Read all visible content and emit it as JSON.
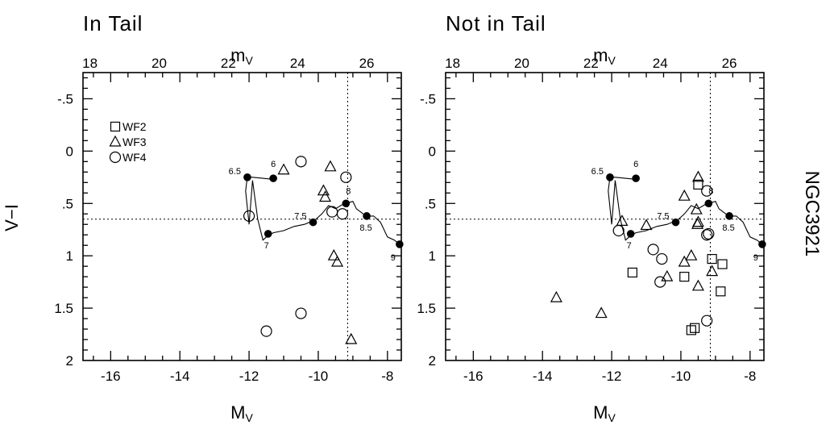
{
  "figure": {
    "side_label": "NGC3921"
  },
  "chart_data": [
    {
      "type": "scatter",
      "title": "In Tail",
      "xlabel": "M",
      "xlabel_sub": "V",
      "ylabel": "V−I",
      "top_xlabel": "m",
      "top_xlabel_sub": "V",
      "xlim": [
        -16.8,
        -7.6
      ],
      "ylim": [
        2,
        -0.75
      ],
      "y_inverted": true,
      "x_ticks": [
        -16,
        -14,
        -12,
        -10,
        -8
      ],
      "x_tick_labels": [
        "-16",
        "-14",
        "-12",
        "-10",
        "-8"
      ],
      "top_ticks": [
        18,
        20,
        22,
        24,
        26
      ],
      "top_tick_labels": [
        "18",
        "20",
        "22",
        "24",
        "26"
      ],
      "top_offset": 34.6,
      "y_ticks": [
        -0.5,
        0,
        0.5,
        1,
        1.5,
        2
      ],
      "y_tick_labels": [
        "-.5",
        "0",
        ".5",
        "1",
        "1.5",
        "2"
      ],
      "legend": {
        "placement": "top-left",
        "entries": [
          {
            "marker": "square",
            "label": "WF2"
          },
          {
            "marker": "triangle",
            "label": "WF3"
          },
          {
            "marker": "circle",
            "label": "WF4"
          }
        ]
      },
      "reference_lines": {
        "v": -9.15,
        "h": 0.65
      },
      "track": [
        [
          -11.3,
          0.27
        ],
        [
          -11.6,
          0.26
        ],
        [
          -11.9,
          0.25
        ],
        [
          -12.05,
          0.25
        ],
        [
          -12.1,
          0.38
        ],
        [
          -12.0,
          0.7
        ],
        [
          -11.9,
          0.28
        ],
        [
          -11.75,
          0.65
        ],
        [
          -11.6,
          0.85
        ],
        [
          -11.5,
          0.82
        ],
        [
          -11.3,
          0.78
        ],
        [
          -11.0,
          0.76
        ],
        [
          -10.7,
          0.72
        ],
        [
          -10.4,
          0.7
        ],
        [
          -10.25,
          0.68
        ],
        [
          -10.1,
          0.66
        ],
        [
          -9.9,
          0.6
        ],
        [
          -9.7,
          0.52
        ],
        [
          -9.5,
          0.55
        ],
        [
          -9.3,
          0.51
        ],
        [
          -9.2,
          0.5
        ],
        [
          -9.0,
          0.48
        ],
        [
          -8.9,
          0.55
        ],
        [
          -8.7,
          0.6
        ],
        [
          -8.6,
          0.62
        ],
        [
          -8.4,
          0.62
        ],
        [
          -8.2,
          0.68
        ],
        [
          -8.0,
          0.82
        ],
        [
          -7.8,
          0.85
        ],
        [
          -7.65,
          0.89
        ]
      ],
      "track_points": [
        {
          "x": -11.3,
          "y": 0.26,
          "label": "6"
        },
        {
          "x": -12.05,
          "y": 0.25,
          "label": "6.5"
        },
        {
          "x": -11.45,
          "y": 0.79,
          "label": "7"
        },
        {
          "x": -10.15,
          "y": 0.68,
          "label": "7.5"
        },
        {
          "x": -9.2,
          "y": 0.5,
          "label": "8"
        },
        {
          "x": -8.6,
          "y": 0.62,
          "label": "8.5"
        },
        {
          "x": -7.65,
          "y": 0.89,
          "label": "9"
        }
      ],
      "series": [
        {
          "name": "WF2",
          "marker": "square",
          "points": []
        },
        {
          "name": "WF3",
          "marker": "triangle",
          "points": [
            [
              -11.0,
              0.18
            ],
            [
              -9.65,
              0.15
            ],
            [
              -9.85,
              0.38
            ],
            [
              -9.8,
              0.44
            ],
            [
              -9.55,
              1.0
            ],
            [
              -9.45,
              1.06
            ],
            [
              -9.05,
              1.8
            ]
          ]
        },
        {
          "name": "WF4",
          "marker": "circle",
          "points": [
            [
              -10.5,
              0.1
            ],
            [
              -12.0,
              0.62
            ],
            [
              -9.2,
              0.25
            ],
            [
              -9.6,
              0.58
            ],
            [
              -9.3,
              0.6
            ],
            [
              -10.5,
              1.55
            ],
            [
              -11.5,
              1.72
            ]
          ]
        }
      ]
    },
    {
      "type": "scatter",
      "title": "Not in Tail",
      "xlabel": "M",
      "xlabel_sub": "V",
      "top_xlabel": "m",
      "top_xlabel_sub": "V",
      "xlim": [
        -16.8,
        -7.6
      ],
      "ylim": [
        2,
        -0.75
      ],
      "y_inverted": true,
      "x_ticks": [
        -16,
        -14,
        -12,
        -10,
        -8
      ],
      "x_tick_labels": [
        "-16",
        "-14",
        "-12",
        "-10",
        "-8"
      ],
      "top_ticks": [
        18,
        20,
        22,
        24,
        26
      ],
      "top_tick_labels": [
        "18",
        "20",
        "22",
        "24",
        "26"
      ],
      "top_offset": 34.6,
      "y_ticks": [
        -0.5,
        0,
        0.5,
        1,
        1.5,
        2
      ],
      "y_tick_labels": [
        "-.5",
        "0",
        ".5",
        "1",
        "1.5",
        "2"
      ],
      "reference_lines": {
        "v": -9.15,
        "h": 0.65
      },
      "track": [
        [
          -11.3,
          0.27
        ],
        [
          -11.6,
          0.26
        ],
        [
          -11.9,
          0.25
        ],
        [
          -12.05,
          0.25
        ],
        [
          -12.1,
          0.38
        ],
        [
          -12.0,
          0.7
        ],
        [
          -11.9,
          0.28
        ],
        [
          -11.75,
          0.65
        ],
        [
          -11.6,
          0.85
        ],
        [
          -11.5,
          0.82
        ],
        [
          -11.3,
          0.78
        ],
        [
          -11.0,
          0.76
        ],
        [
          -10.7,
          0.72
        ],
        [
          -10.4,
          0.7
        ],
        [
          -10.25,
          0.68
        ],
        [
          -10.1,
          0.66
        ],
        [
          -9.9,
          0.6
        ],
        [
          -9.7,
          0.52
        ],
        [
          -9.5,
          0.55
        ],
        [
          -9.3,
          0.51
        ],
        [
          -9.2,
          0.5
        ],
        [
          -9.0,
          0.48
        ],
        [
          -8.9,
          0.55
        ],
        [
          -8.7,
          0.6
        ],
        [
          -8.6,
          0.62
        ],
        [
          -8.4,
          0.62
        ],
        [
          -8.2,
          0.68
        ],
        [
          -8.0,
          0.82
        ],
        [
          -7.8,
          0.85
        ],
        [
          -7.65,
          0.89
        ]
      ],
      "track_points": [
        {
          "x": -11.3,
          "y": 0.26,
          "label": "6"
        },
        {
          "x": -12.05,
          "y": 0.25,
          "label": "6.5"
        },
        {
          "x": -11.45,
          "y": 0.79,
          "label": "7"
        },
        {
          "x": -10.15,
          "y": 0.68,
          "label": "7.5"
        },
        {
          "x": -9.2,
          "y": 0.5,
          "label": "8"
        },
        {
          "x": -8.6,
          "y": 0.62,
          "label": "8.5"
        },
        {
          "x": -7.65,
          "y": 0.89,
          "label": "9"
        }
      ],
      "series": [
        {
          "name": "WF2",
          "marker": "square",
          "points": [
            [
              -9.5,
              0.32
            ],
            [
              -9.1,
              1.03
            ],
            [
              -8.8,
              1.08
            ],
            [
              -8.85,
              1.34
            ],
            [
              -11.4,
              1.16
            ],
            [
              -9.9,
              1.2
            ],
            [
              -9.6,
              1.69
            ],
            [
              -9.7,
              1.71
            ]
          ]
        },
        {
          "name": "WF3",
          "marker": "triangle",
          "points": [
            [
              -9.5,
              0.25
            ],
            [
              -9.9,
              0.43
            ],
            [
              -9.55,
              0.56
            ],
            [
              -9.5,
              0.68
            ],
            [
              -9.52,
              0.7
            ],
            [
              -11.7,
              0.67
            ],
            [
              -11.0,
              0.71
            ],
            [
              -9.9,
              1.06
            ],
            [
              -9.7,
              1.0
            ],
            [
              -10.4,
              1.2
            ],
            [
              -9.1,
              1.15
            ],
            [
              -9.5,
              1.29
            ],
            [
              -12.3,
              1.55
            ],
            [
              -13.6,
              1.4
            ]
          ]
        },
        {
          "name": "WF4",
          "marker": "circle",
          "points": [
            [
              -9.25,
              0.38
            ],
            [
              -9.25,
              0.8
            ],
            [
              -9.2,
              0.79
            ],
            [
              -11.8,
              0.76
            ],
            [
              -10.8,
              0.94
            ],
            [
              -10.55,
              1.03
            ],
            [
              -10.6,
              1.25
            ],
            [
              -9.25,
              1.62
            ]
          ]
        }
      ]
    }
  ]
}
